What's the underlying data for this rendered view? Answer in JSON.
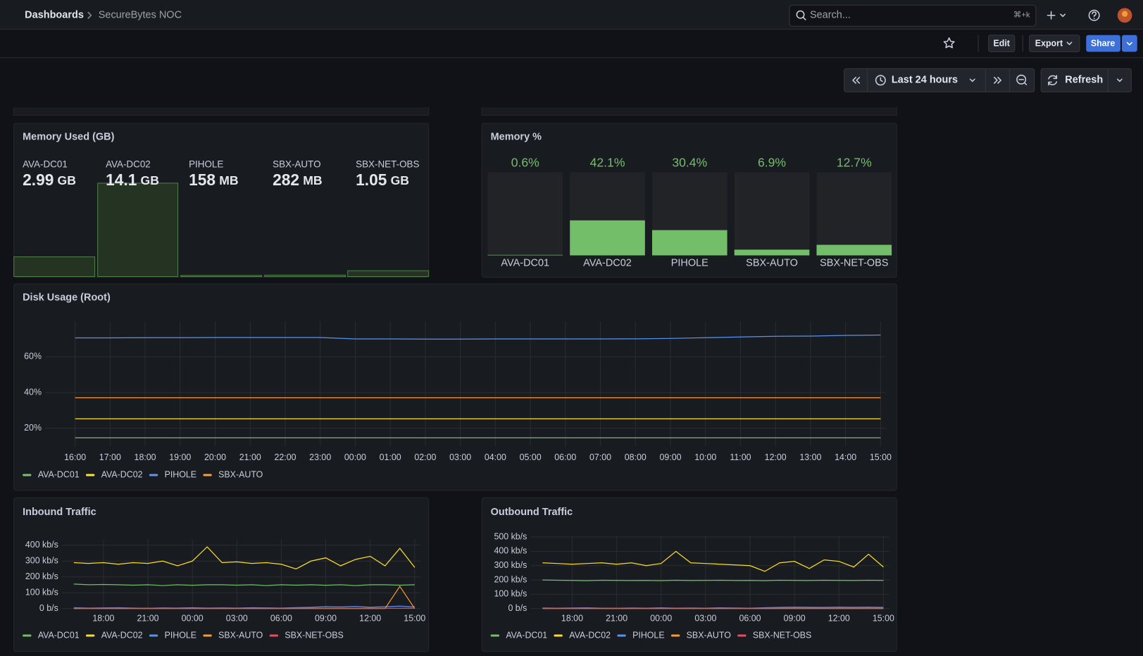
{
  "header": {
    "breadcrumb_root": "Dashboards",
    "breadcrumb_current": "SecureBytes NOC",
    "search": "Search...",
    "shortcut": "⌘+k"
  },
  "toolbar": {
    "edit": "Edit",
    "export": "Export",
    "share": "Share",
    "time_range": "Last 24 hours",
    "refresh": "Refresh"
  },
  "panels": {
    "memory_used": {
      "title": "Memory Used (GB)",
      "items": [
        {
          "name": "AVA-DC01",
          "value": "2.99",
          "unit": "GB"
        },
        {
          "name": "AVA-DC02",
          "value": "14.1",
          "unit": "GB"
        },
        {
          "name": "PIHOLE",
          "value": "158",
          "unit": "MB"
        },
        {
          "name": "SBX-AUTO",
          "value": "282",
          "unit": "MB"
        },
        {
          "name": "SBX-NET-OBS",
          "value": "1.05",
          "unit": "GB"
        }
      ]
    },
    "memory_pct": {
      "type": "bar",
      "title": "Memory %",
      "categories": [
        "AVA-DC01",
        "AVA-DC02",
        "PIHOLE",
        "SBX-AUTO",
        "SBX-NET-OBS"
      ],
      "values": [
        0.6,
        42.1,
        30.4,
        6.9,
        12.7
      ],
      "value_labels": [
        "0.6%",
        "42.1%",
        "30.4%",
        "6.9%",
        "12.7%"
      ],
      "ylim": [
        0,
        100
      ],
      "color": "#73bf69"
    },
    "disk": {
      "type": "line",
      "title": "Disk Usage (Root)",
      "categories": [
        "16:00",
        "17:00",
        "18:00",
        "19:00",
        "20:00",
        "21:00",
        "22:00",
        "23:00",
        "00:00",
        "01:00",
        "02:00",
        "03:00",
        "04:00",
        "05:00",
        "06:00",
        "07:00",
        "08:00",
        "09:00",
        "10:00",
        "11:00",
        "12:00",
        "13:00",
        "14:00",
        "15:00"
      ],
      "ylim": [
        10,
        80
      ],
      "yticks": [
        {
          "value": 20,
          "label": "20%"
        },
        {
          "value": 40,
          "label": "40%"
        },
        {
          "value": 60,
          "label": "60%"
        }
      ],
      "grid": true,
      "series": [
        {
          "name": "AVA-DC01",
          "color": "#73bf69",
          "values": [
            14.7,
            14.7,
            14.7,
            14.7,
            14.7,
            14.7,
            14.7,
            14.7,
            14.7,
            14.7,
            14.7,
            14.7,
            14.7,
            14.7,
            14.7,
            14.7,
            14.7,
            14.7,
            14.7,
            14.7,
            14.7,
            14.7,
            14.7,
            14.7
          ]
        },
        {
          "name": "AVA-DC02",
          "color": "#fade2a",
          "values": [
            25.3,
            25.3,
            25.3,
            25.3,
            25.3,
            25.3,
            25.3,
            25.3,
            25.3,
            25.3,
            25.3,
            25.3,
            25.3,
            25.3,
            25.3,
            25.3,
            25.3,
            25.3,
            25.3,
            25.3,
            25.3,
            25.3,
            25.3,
            25.3
          ]
        },
        {
          "name": "PIHOLE",
          "color": "#5794f2",
          "values": [
            70.6,
            70.6,
            70.7,
            70.7,
            70.8,
            70.8,
            70.8,
            70.8,
            70.0,
            70.0,
            69.9,
            69.9,
            70.0,
            70.0,
            70.0,
            70.0,
            70.1,
            70.3,
            70.7,
            71.1,
            71.5,
            71.6,
            72.0,
            72.2
          ]
        },
        {
          "name": "SBX-AUTO",
          "color": "#ff9830",
          "values": [
            37.1,
            37.1,
            37.1,
            37.1,
            37.1,
            37.1,
            37.1,
            37.1,
            37.1,
            37.1,
            37.1,
            37.1,
            37.1,
            37.1,
            37.1,
            37.1,
            37.1,
            37.1,
            37.1,
            37.1,
            37.1,
            37.1,
            37.1,
            37.1
          ]
        }
      ]
    },
    "inbound": {
      "type": "line",
      "title": "Inbound Traffic",
      "x": [
        16,
        17,
        18,
        19,
        20,
        21,
        22,
        23,
        24,
        25,
        26,
        27,
        28,
        29,
        30,
        31,
        32,
        33,
        34,
        35,
        36,
        37,
        38,
        39
      ],
      "xlim": [
        15.2,
        39.4
      ],
      "xticks": [
        {
          "value": 18,
          "label": "18:00"
        },
        {
          "value": 21,
          "label": "21:00"
        },
        {
          "value": 24,
          "label": "00:00"
        },
        {
          "value": 27,
          "label": "03:00"
        },
        {
          "value": 30,
          "label": "06:00"
        },
        {
          "value": 33,
          "label": "09:00"
        },
        {
          "value": 36,
          "label": "12:00"
        },
        {
          "value": 39,
          "label": "15:00"
        }
      ],
      "ylim": [
        0,
        440
      ],
      "yticks": [
        {
          "value": 0,
          "label": "0 b/s"
        },
        {
          "value": 100,
          "label": "100 kb/s"
        },
        {
          "value": 200,
          "label": "200 kb/s"
        },
        {
          "value": 300,
          "label": "300 kb/s"
        },
        {
          "value": 400,
          "label": "400 kb/s"
        }
      ],
      "grid": true,
      "series": [
        {
          "name": "AVA-DC01",
          "color": "#73bf69",
          "values": [
            155,
            150,
            152,
            150,
            148,
            150,
            145,
            150,
            147,
            150,
            150,
            148,
            150,
            145,
            150,
            148,
            150,
            147,
            150,
            145,
            150,
            150,
            148,
            150
          ]
        },
        {
          "name": "AVA-DC02",
          "color": "#fade2a",
          "values": [
            290,
            285,
            290,
            280,
            290,
            285,
            300,
            270,
            300,
            390,
            290,
            295,
            285,
            290,
            280,
            250,
            300,
            320,
            270,
            310,
            330,
            270,
            380,
            260
          ]
        },
        {
          "name": "PIHOLE",
          "color": "#5794f2",
          "values": [
            5,
            3,
            4,
            5,
            3,
            2,
            4,
            3,
            5,
            3,
            4,
            3,
            5,
            4,
            3,
            6,
            8,
            12,
            10,
            14,
            8,
            12,
            15,
            10
          ]
        },
        {
          "name": "SBX-AUTO",
          "color": "#ff9830",
          "values": [
            0,
            0,
            0,
            0,
            0,
            0,
            0,
            0,
            0,
            0,
            0,
            0,
            0,
            0,
            0,
            0,
            0,
            0,
            0,
            0,
            0,
            0,
            140,
            0
          ]
        },
        {
          "name": "SBX-NET-OBS",
          "color": "#f2495c",
          "values": [
            2,
            2,
            2,
            2,
            2,
            2,
            2,
            2,
            2,
            2,
            2,
            2,
            2,
            2,
            2,
            2,
            2,
            2,
            2,
            2,
            2,
            2,
            2,
            2
          ]
        }
      ]
    },
    "outbound": {
      "type": "line",
      "title": "Outbound Traffic",
      "x": [
        16,
        17,
        18,
        19,
        20,
        21,
        22,
        23,
        24,
        25,
        26,
        27,
        28,
        29,
        30,
        31,
        32,
        33,
        34,
        35,
        36,
        37,
        38,
        39
      ],
      "xlim": [
        15.2,
        39.4
      ],
      "xticks": [
        {
          "value": 18,
          "label": "18:00"
        },
        {
          "value": 21,
          "label": "21:00"
        },
        {
          "value": 24,
          "label": "00:00"
        },
        {
          "value": 27,
          "label": "03:00"
        },
        {
          "value": 30,
          "label": "06:00"
        },
        {
          "value": 33,
          "label": "09:00"
        },
        {
          "value": 36,
          "label": "12:00"
        },
        {
          "value": 39,
          "label": "15:00"
        }
      ],
      "ylim": [
        0,
        510
      ],
      "yticks": [
        {
          "value": 0,
          "label": "0 b/s"
        },
        {
          "value": 100,
          "label": "100 kb/s"
        },
        {
          "value": 200,
          "label": "200 kb/s"
        },
        {
          "value": 300,
          "label": "300 kb/s"
        },
        {
          "value": 400,
          "label": "400 kb/s"
        },
        {
          "value": 500,
          "label": "500 kb/s"
        }
      ],
      "grid": true,
      "series": [
        {
          "name": "AVA-DC01",
          "color": "#73bf69",
          "values": [
            200,
            198,
            197,
            195,
            198,
            197,
            196,
            197,
            195,
            198,
            196,
            197,
            198,
            196,
            197,
            195,
            198,
            197,
            196,
            198,
            197,
            196,
            198,
            197
          ]
        },
        {
          "name": "AVA-DC02",
          "color": "#fade2a",
          "values": [
            320,
            315,
            310,
            315,
            320,
            310,
            320,
            300,
            315,
            400,
            320,
            315,
            310,
            305,
            300,
            260,
            320,
            330,
            280,
            340,
            330,
            290,
            380,
            290
          ]
        },
        {
          "name": "PIHOLE",
          "color": "#5794f2",
          "values": [
            4,
            3,
            4,
            5,
            3,
            2,
            4,
            3,
            5,
            3,
            4,
            3,
            5,
            4,
            3,
            6,
            8,
            10,
            9,
            8,
            10,
            9,
            10,
            8
          ]
        },
        {
          "name": "SBX-AUTO",
          "color": "#ff9830",
          "values": [
            0,
            0,
            0,
            0,
            0,
            0,
            0,
            0,
            0,
            0,
            0,
            0,
            0,
            0,
            0,
            0,
            0,
            0,
            0,
            0,
            0,
            0,
            0,
            0
          ]
        },
        {
          "name": "SBX-NET-OBS",
          "color": "#f2495c",
          "values": [
            2,
            2,
            2,
            2,
            2,
            2,
            2,
            2,
            2,
            2,
            2,
            2,
            2,
            2,
            2,
            2,
            2,
            2,
            2,
            2,
            2,
            2,
            2,
            2
          ]
        }
      ]
    }
  }
}
